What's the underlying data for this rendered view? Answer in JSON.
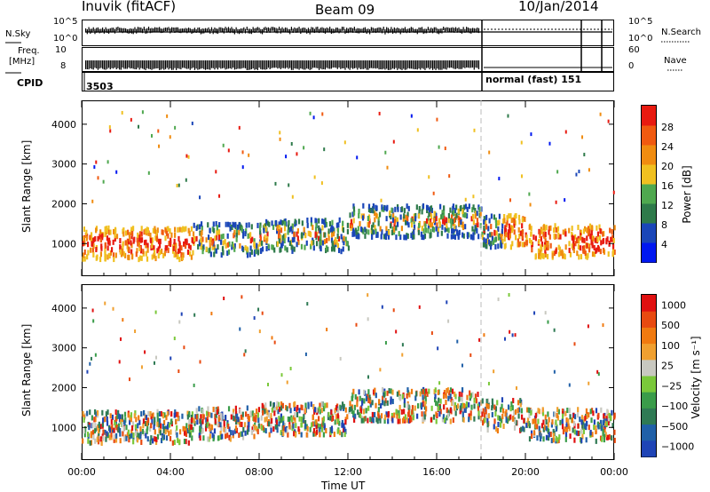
{
  "header": {
    "station": "Inuvik (fitACF)",
    "beam": "Beam 09",
    "date": "10/Jan/2014"
  },
  "summary": {
    "nsky_label": "N.Sky",
    "nsky_ticks": [
      "10^5",
      "10^0"
    ],
    "nsearch_label": "N.Search",
    "freq_label": "Freq.",
    "freq_unit": "[MHz]",
    "freq_ticks": [
      "10",
      "8"
    ],
    "nave_label": "Nave",
    "nave_ticks": [
      "60",
      "0"
    ],
    "cpid_label": "CPID",
    "cpid_left": "3503",
    "cpid_right": "normal (fast) 151"
  },
  "colors": {
    "power": [
      "#0018f0",
      "#1a46b8",
      "#2e7a4a",
      "#4fa84f",
      "#f0c020",
      "#f08c10",
      "#f05a10",
      "#e81a10"
    ],
    "velocity": [
      "#1f44b6",
      "#2060a8",
      "#2f7a54",
      "#3a9c4a",
      "#7ac83a",
      "#c8c8c0",
      "#f0a030",
      "#f07a10",
      "#e84a10",
      "#e01010"
    ]
  },
  "chart_data": [
    {
      "type": "heatmap",
      "title": "Power",
      "ylabel": "Slant Range [km]",
      "xlabel": "",
      "ylim": [
        180,
        4600
      ],
      "y_ticks": [
        "4000",
        "3000",
        "2000",
        "1000"
      ],
      "x_ticks": [
        "00:00",
        "04:00",
        "08:00",
        "12:00",
        "16:00",
        "20:00",
        "00:00"
      ],
      "colorbar_label": "Power [dB]",
      "colorbar_ticks": [
        "28",
        "24",
        "20",
        "16",
        "12",
        "8",
        "4"
      ],
      "crange": [
        0,
        32
      ]
    },
    {
      "type": "heatmap",
      "title": "Velocity",
      "ylabel": "Slant Range [km]",
      "xlabel": "Time UT",
      "ylim": [
        180,
        4600
      ],
      "y_ticks": [
        "4000",
        "3000",
        "2000",
        "1000"
      ],
      "x_ticks": [
        "00:00",
        "04:00",
        "08:00",
        "12:00",
        "16:00",
        "20:00",
        "00:00"
      ],
      "colorbar_label": "Velocity [m s⁻¹]",
      "colorbar_ticks": [
        "1000",
        "500",
        "100",
        "25",
        "−25",
        "−100",
        "−500",
        "−1000"
      ]
    }
  ]
}
